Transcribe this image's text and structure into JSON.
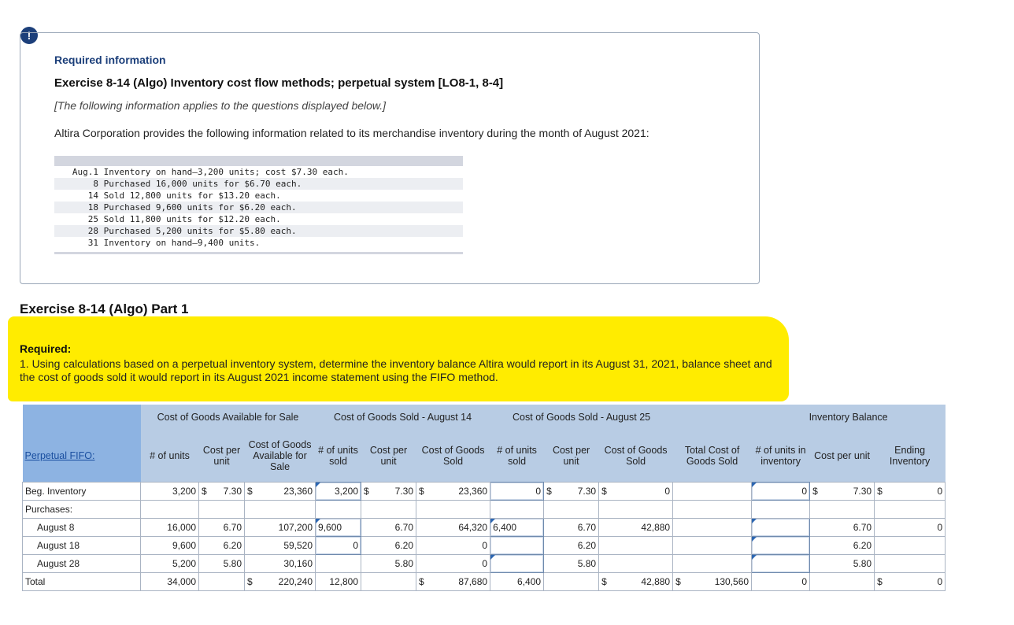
{
  "alert_icon": "!",
  "info": {
    "required_heading": "Required information",
    "exercise_title": "Exercise 8-14 (Algo) Inventory cost flow methods; perpetual system [LO8-1, 8-4]",
    "note": "[The following information applies to the questions displayed below.]",
    "description": "Altira Corporation provides the following information related to its merchandise inventory during the month of August 2021:",
    "transactions": [
      {
        "date": "Aug.1",
        "text": "Inventory on hand—3,200 units; cost $7.30 each."
      },
      {
        "date": "8",
        "text": "Purchased 16,000 units for $6.70 each."
      },
      {
        "date": "14",
        "text": "Sold 12,800 units for $13.20 each."
      },
      {
        "date": "18",
        "text": "Purchased 9,600 units for $6.20 each."
      },
      {
        "date": "25",
        "text": "Sold 11,800 units for $12.20 each."
      },
      {
        "date": "28",
        "text": "Purchased 5,200 units for $5.80 each."
      },
      {
        "date": "31",
        "text": "Inventory on hand—9,400 units."
      }
    ]
  },
  "part_title": "Exercise 8-14 (Algo) Part 1",
  "required": {
    "label": "Required:",
    "text": "1. Using calculations based on a perpetual inventory system, determine the inventory balance Altira would report in its August 31, 2021, balance sheet and the cost of goods sold it would report in its August 2021 income statement using the FIFO method."
  },
  "table": {
    "group_headers": {
      "available": "Cost of Goods Available for Sale",
      "sold14": "Cost of Goods Sold - August 14",
      "sold25": "Cost of Goods Sold - August 25",
      "balance": "Inventory Balance"
    },
    "row_label_header": "Perpetual FIFO:",
    "col_headers": {
      "units": "# of units",
      "cost_per_unit": "Cost per unit",
      "goods_available": "Cost of Goods Available for Sale",
      "units_sold": "# of units sold",
      "cost_per_unit_14": "Cost per unit",
      "cogs_14": "Cost of Goods Sold",
      "units_sold_25": "# of units sold",
      "cost_per_unit_25": "Cost per unit",
      "cogs_25": "Cost of Goods Sold",
      "total_cogs": "Total Cost of Goods Sold",
      "units_inventory": "# of units in inventory",
      "cost_per_unit_inv": "Cost per unit",
      "ending_inventory": "Ending Inventory"
    },
    "rows": {
      "beg": {
        "label": "Beg. Inventory",
        "units": "3,200",
        "cpu": "7.30",
        "avail": "23,360",
        "sold14": "3,200",
        "cpu14": "7.30",
        "cogs14": "23,360",
        "sold25": "0",
        "cpu25": "7.30",
        "cogs25": "0",
        "inv_units": "0",
        "inv_cpu": "7.30",
        "ending": "0"
      },
      "purchases": {
        "label": "Purchases:"
      },
      "aug8": {
        "label": "August 8",
        "units": "16,000",
        "cpu": "6.70",
        "avail": "107,200",
        "sold14": "9,600",
        "cpu14": "6.70",
        "cogs14": "64,320",
        "sold25": "6,400",
        "cpu25": "6.70",
        "cogs25": "42,880",
        "inv_cpu": "6.70",
        "ending": "0"
      },
      "aug18": {
        "label": "August 18",
        "units": "9,600",
        "cpu": "6.20",
        "avail": "59,520",
        "sold14": "0",
        "cpu14": "6.20",
        "cogs14": "0",
        "cpu25": "6.20",
        "inv_cpu": "6.20"
      },
      "aug28": {
        "label": "August 28",
        "units": "5,200",
        "cpu": "5.80",
        "avail": "30,160",
        "cpu14": "5.80",
        "cogs14": "0",
        "cpu25": "5.80",
        "inv_cpu": "5.80"
      },
      "total": {
        "label": "Total",
        "units": "34,000",
        "avail": "220,240",
        "sold14": "12,800",
        "cogs14": "87,680",
        "sold25": "6,400",
        "cogs25": "42,880",
        "total_cogs": "130,560",
        "inv_units": "0",
        "ending": "0"
      }
    },
    "currency": "$"
  }
}
